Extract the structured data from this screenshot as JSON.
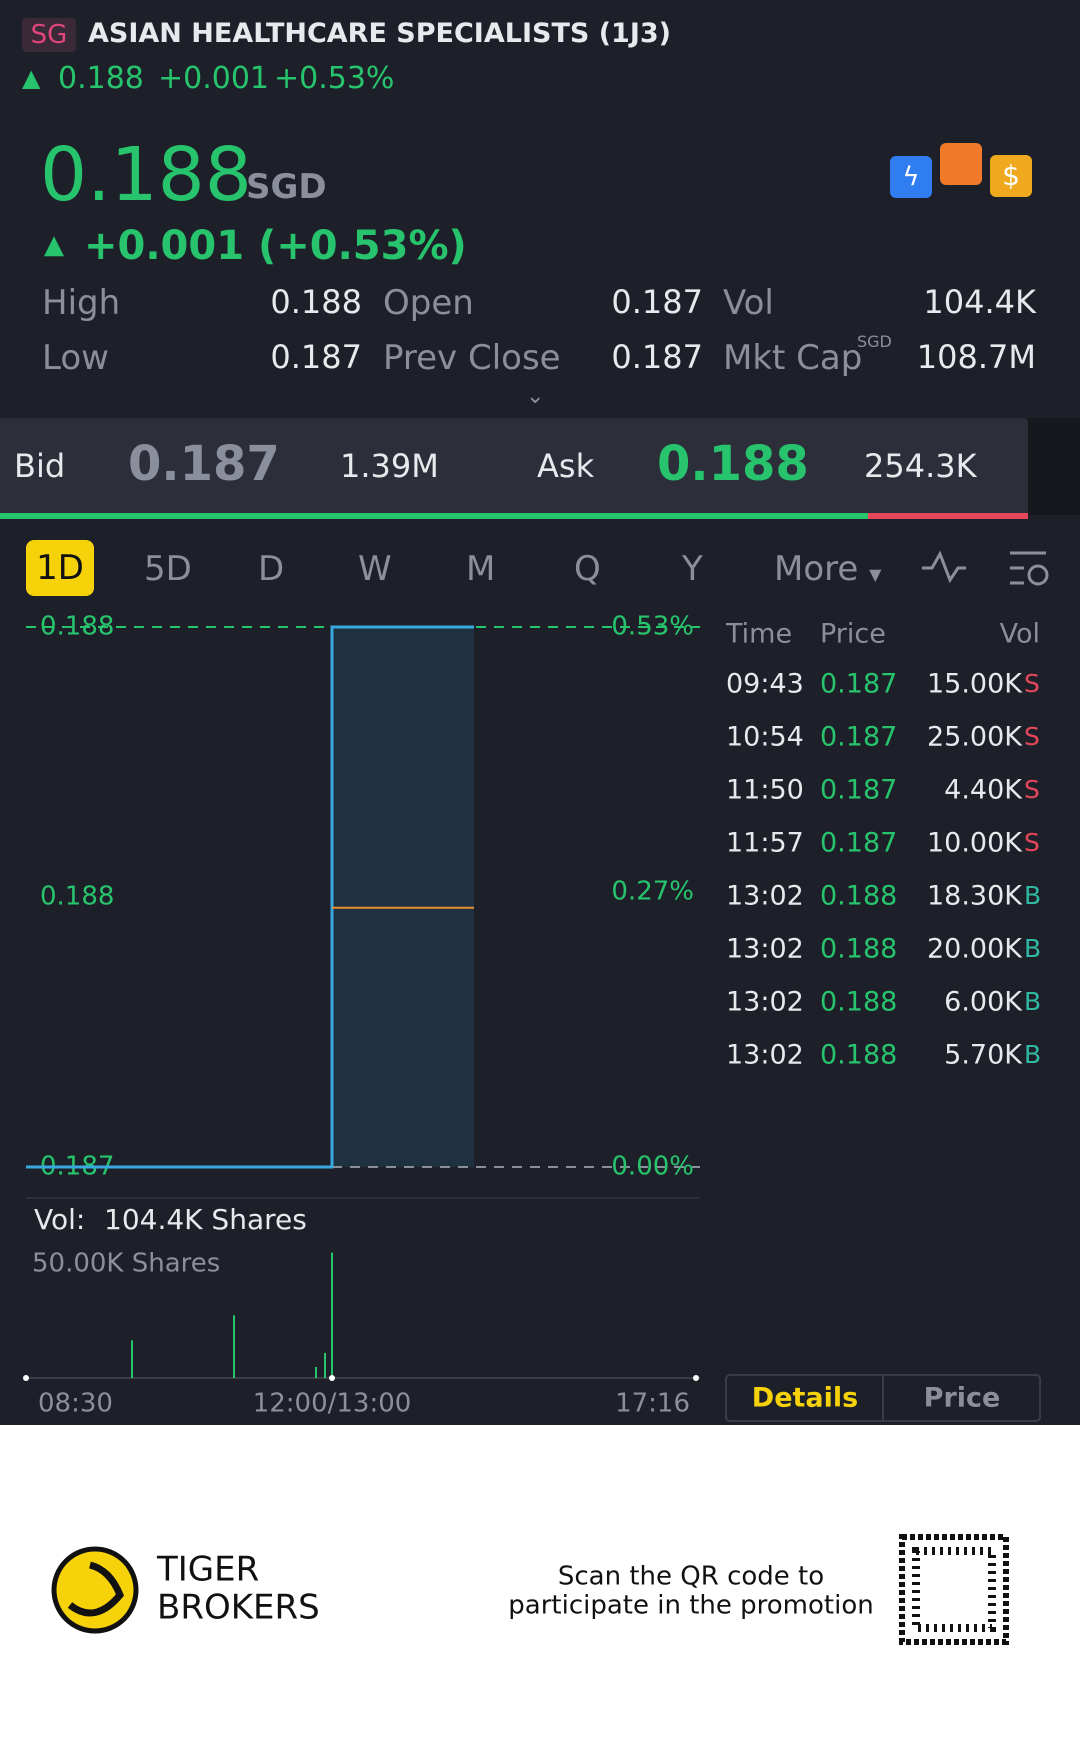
{
  "header": {
    "market": "SG",
    "name": "ASIAN HEALTHCARE SPECIALISTS (1J3)",
    "price": "0.188",
    "change": "+0.001",
    "percent": "+0.53%"
  },
  "quote": {
    "price": "0.188",
    "currency": "SGD",
    "change": "+0.001 (+0.53%)",
    "stats": [
      {
        "label": "High",
        "value": "0.188"
      },
      {
        "label": "Open",
        "value": "0.187"
      },
      {
        "label": "Vol",
        "value": "104.4K"
      },
      {
        "label": "Low",
        "value": "0.187"
      },
      {
        "label": "Prev Close",
        "value": "0.187"
      },
      {
        "label": "Mkt Cap",
        "unit": "SGD",
        "value": "108.7M"
      }
    ]
  },
  "bidask": {
    "bid_label": "Bid",
    "bid": "0.187",
    "bid_size": "1.39M",
    "ask_label": "Ask",
    "ask": "0.188",
    "ask_size": "254.3K"
  },
  "tabs": [
    "1D",
    "5D",
    "D",
    "W",
    "M",
    "Q",
    "Y",
    "More"
  ],
  "chart_data": {
    "type": "line",
    "ylim": [
      0.187,
      0.188
    ],
    "yticks": [
      0.188,
      {
        "value": 0.1875,
        "label": "0.188"
      },
      0.187
    ],
    "y2lim": [
      0,
      0.53
    ],
    "y2ticks": [
      {
        "value": 0.53,
        "label": "0.53%"
      },
      {
        "value": 0.27,
        "label": "0.27%"
      },
      {
        "value": 0,
        "label": "0.00%"
      }
    ],
    "series": [
      {
        "color": "#3aa8e0",
        "values": [
          0.187,
          0.187,
          0.188,
          0.188
        ]
      }
    ],
    "average": 0.18748,
    "average_color": "#e8912d",
    "x_labels": [
      "08:30",
      "12:00/13:00",
      "17:16"
    ],
    "volume_label": "Vol:",
    "volume_total": "104.4K Shares",
    "volume_scale_label": "50.00K Shares",
    "volume": {
      "color": "#27c46d",
      "ylim": [
        0,
        55
      ],
      "values": [
        15,
        25,
        4.4,
        10,
        18.3,
        20,
        6,
        5.7
      ]
    }
  },
  "trades": {
    "headers": [
      "Time",
      "Price",
      "Vol"
    ],
    "rows": [
      [
        "09:43",
        "0.187",
        "15.00K",
        "S"
      ],
      [
        "10:54",
        "0.187",
        "25.00K",
        "S"
      ],
      [
        "11:50",
        "0.187",
        "4.40K",
        "S"
      ],
      [
        "11:57",
        "0.187",
        "10.00K",
        "S"
      ],
      [
        "13:02",
        "0.188",
        "18.30K",
        "B"
      ],
      [
        "13:02",
        "0.188",
        "20.00K",
        "B"
      ],
      [
        "13:02",
        "0.188",
        "6.00K",
        "B"
      ],
      [
        "13:02",
        "0.188",
        "5.70K",
        "B"
      ]
    ]
  },
  "buttons": [
    "Details",
    "Price"
  ],
  "footer": {
    "brand_line1": "TIGER",
    "brand_line2": "BROKERS",
    "promo_line1": "Scan the QR code to",
    "promo_line2": "participate in the promotion"
  }
}
